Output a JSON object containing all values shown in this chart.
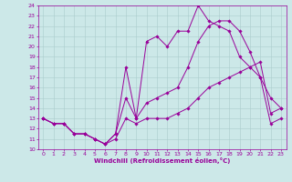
{
  "xlabel": "Windchill (Refroidissement éolien,°C)",
  "background_color": "#cce8e8",
  "line_color": "#990099",
  "grid_color": "#aacccc",
  "xlim": [
    -0.5,
    23.5
  ],
  "ylim": [
    10,
    24
  ],
  "xticks": [
    0,
    1,
    2,
    3,
    4,
    5,
    6,
    7,
    8,
    9,
    10,
    11,
    12,
    13,
    14,
    15,
    16,
    17,
    18,
    19,
    20,
    21,
    22,
    23
  ],
  "yticks": [
    10,
    11,
    12,
    13,
    14,
    15,
    16,
    17,
    18,
    19,
    20,
    21,
    22,
    23,
    24
  ],
  "series1_x": [
    0,
    1,
    2,
    3,
    4,
    5,
    6,
    7,
    8,
    9,
    10,
    11,
    12,
    13,
    14,
    15,
    16,
    17,
    18,
    19,
    20,
    21,
    22,
    23
  ],
  "series1_y": [
    13.0,
    12.5,
    12.5,
    11.5,
    11.5,
    11.0,
    10.5,
    11.0,
    13.0,
    12.5,
    13.0,
    13.0,
    13.0,
    13.5,
    14.0,
    15.0,
    16.0,
    16.5,
    17.0,
    17.5,
    18.0,
    18.5,
    13.5,
    14.0
  ],
  "series2_x": [
    0,
    1,
    2,
    3,
    4,
    5,
    6,
    7,
    8,
    9,
    10,
    11,
    12,
    13,
    14,
    15,
    16,
    17,
    18,
    19,
    20,
    21,
    22,
    23
  ],
  "series2_y": [
    13.0,
    12.5,
    12.5,
    11.5,
    11.5,
    11.0,
    10.5,
    11.5,
    15.0,
    13.0,
    14.5,
    15.0,
    15.5,
    16.0,
    18.0,
    20.5,
    22.0,
    22.5,
    22.5,
    21.5,
    19.5,
    17.0,
    15.0,
    14.0
  ],
  "series3_x": [
    0,
    1,
    2,
    3,
    4,
    5,
    6,
    7,
    8,
    9,
    10,
    11,
    12,
    13,
    14,
    15,
    16,
    17,
    18,
    19,
    20,
    21,
    22,
    23
  ],
  "series3_y": [
    13.0,
    12.5,
    12.5,
    11.5,
    11.5,
    11.0,
    10.5,
    11.5,
    18.0,
    13.0,
    20.5,
    21.0,
    20.0,
    21.5,
    21.5,
    24.0,
    22.5,
    22.0,
    21.5,
    19.0,
    18.0,
    17.0,
    12.5,
    13.0
  ],
  "xlabel_fontsize": 5.0,
  "tick_fontsize": 4.5
}
